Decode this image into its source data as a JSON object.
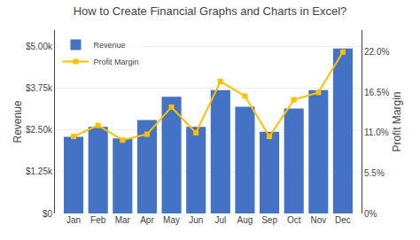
{
  "chart_data": {
    "type": "bar",
    "title": "How to Create Financial Graphs and Charts in Excel?",
    "categories": [
      "Jan",
      "Feb",
      "Mar",
      "Apr",
      "May",
      "Jun",
      "Jul",
      "Aug",
      "Sep",
      "Oct",
      "Nov",
      "Dec"
    ],
    "series": [
      {
        "name": "Revenue",
        "type": "bar",
        "color": "#4472C4",
        "values": [
          2300,
          2600,
          2250,
          2800,
          3500,
          2600,
          3700,
          3200,
          2450,
          3150,
          3700,
          4950
        ]
      },
      {
        "name": "Profit Margin",
        "type": "line",
        "axis": "y2",
        "color": "#FFC000",
        "marker": "square",
        "values": [
          10.5,
          12.0,
          10.0,
          10.8,
          14.5,
          11.0,
          18.0,
          16.0,
          10.5,
          15.5,
          16.5,
          22.0
        ]
      }
    ],
    "ylabel": "Revenue",
    "y2label": "Profit Margin",
    "ylim": [
      0,
      5500
    ],
    "yticks": [
      {
        "value": 0,
        "label": "$0"
      },
      {
        "value": 1250,
        "label": "$1.25k"
      },
      {
        "value": 2500,
        "label": "$2.50k"
      },
      {
        "value": 3750,
        "label": "$3.75k"
      },
      {
        "value": 5000,
        "label": "$5.00k"
      }
    ],
    "y2lim": [
      0,
      25
    ],
    "y2ticks": [
      {
        "value": 0,
        "label": "0%"
      },
      {
        "value": 5.5,
        "label": "5.5%"
      },
      {
        "value": 11.0,
        "label": "11.0%"
      },
      {
        "value": 16.5,
        "label": "16.5%"
      },
      {
        "value": 22.0,
        "label": "22.0%"
      }
    ],
    "grid": true,
    "legend": "upper left"
  }
}
